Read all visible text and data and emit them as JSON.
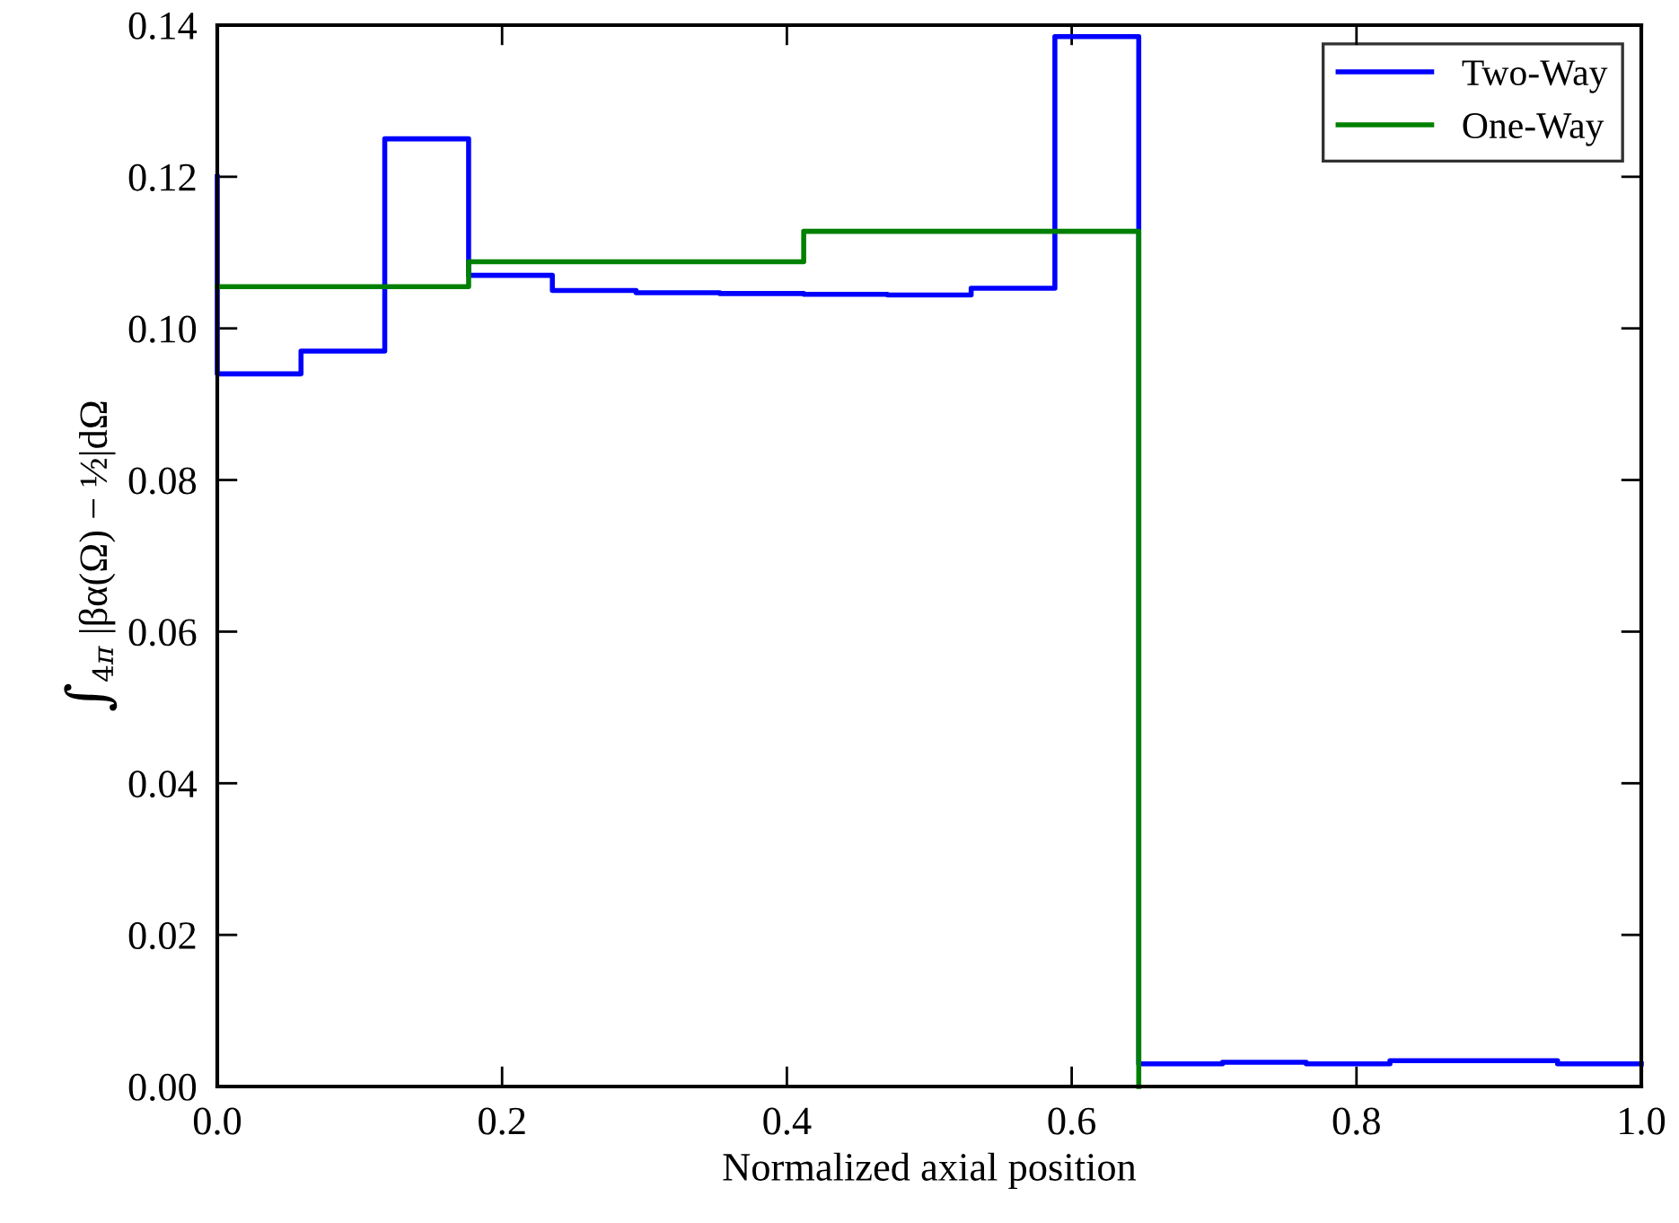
{
  "chart_data": {
    "type": "step",
    "xlabel": "Normalized axial position",
    "ylabel": "∫$_{4π}$ |βα(Ω) − ½|dΩ",
    "series": [
      {
        "name": "Two-Way",
        "color": "#0000ff",
        "x": [
          0,
          0.0588,
          0.1176,
          0.1765,
          0.2353,
          0.2941,
          0.3529,
          0.4118,
          0.4706,
          0.5294,
          0.5882,
          0.6471,
          0.7059,
          0.7647,
          0.8235,
          0.8824,
          0.9412,
          1.0
        ],
        "values": [
          0.12,
          0.094,
          0.097,
          0.125,
          0.107,
          0.105,
          0.1047,
          0.1046,
          0.1045,
          0.1044,
          0.1053,
          0.1385,
          0.003,
          0.0032,
          0.003,
          0.0034,
          0.0034,
          0.003
        ]
      },
      {
        "name": "One-Way",
        "color": "#008000",
        "x": [
          0,
          0.1765,
          0.4118,
          0.6471,
          0.6471
        ],
        "values": [
          0.1055,
          0.1055,
          0.1088,
          0.1128,
          0
        ]
      }
    ],
    "xlim": [
      0,
      1.0
    ],
    "ylim": [
      0,
      0.14
    ],
    "xticks": [
      {
        "value": 0,
        "label": "0.0"
      },
      0.2,
      0.4,
      0.6,
      0.8,
      {
        "value": 1.0,
        "label": "1.0"
      }
    ],
    "yticks": [
      {
        "value": 0,
        "label": "0.00"
      },
      0.02,
      0.04,
      0.06,
      0.08,
      {
        "value": 0.1,
        "label": "0.10"
      },
      0.12,
      0.14
    ],
    "legend": "top right",
    "grid": false,
    "line_style": "solid",
    "marker": "none"
  }
}
